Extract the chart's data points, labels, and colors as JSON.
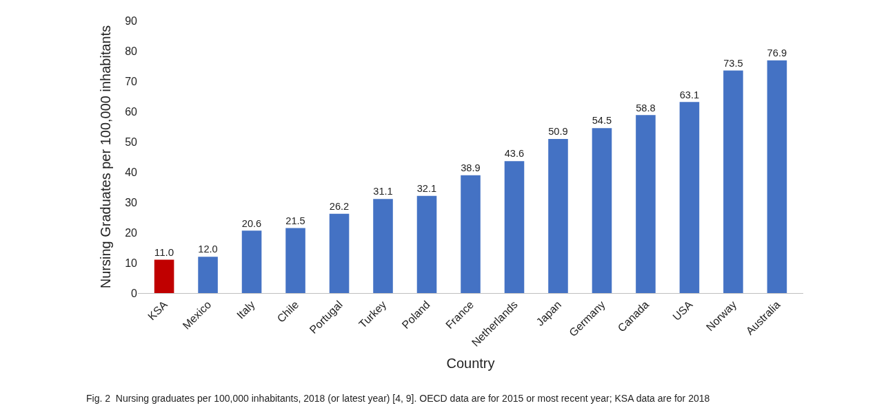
{
  "chart_data": {
    "type": "bar",
    "xlabel": "Country",
    "ylabel": "Nursing Graduates per 100,000 inhabitants",
    "categories": [
      "KSA",
      "Mexico",
      "Italy",
      "Chile",
      "Portugal",
      "Turkey",
      "Poland",
      "France",
      "Netherlands",
      "Japan",
      "Germany",
      "Canada",
      "USA",
      "Norway",
      "Australia"
    ],
    "values": [
      11.0,
      12.0,
      20.6,
      21.5,
      26.2,
      31.1,
      32.1,
      38.9,
      43.6,
      50.9,
      54.5,
      58.8,
      63.1,
      73.5,
      76.9
    ],
    "colors": [
      "#c00000",
      "#4472c4",
      "#4472c4",
      "#4472c4",
      "#4472c4",
      "#4472c4",
      "#4472c4",
      "#4472c4",
      "#4472c4",
      "#4472c4",
      "#4472c4",
      "#4472c4",
      "#4472c4",
      "#4472c4",
      "#4472c4"
    ],
    "value_labels": [
      "11.0",
      "12.0",
      "20.6",
      "21.5",
      "26.2",
      "31.1",
      "32.1",
      "38.9",
      "43.6",
      "50.9",
      "54.5",
      "58.8",
      "63.1",
      "73.5",
      "76.9"
    ],
    "ylim": [
      0,
      90
    ],
    "yticks": [
      0,
      10,
      20,
      30,
      40,
      50,
      60,
      70,
      80,
      90
    ],
    "annotations": [
      "Fig. 2  Nursing graduates per 100,000 inhabitants, 2018 (or latest year) [4, 9]. OECD data are for 2015 or most recent year; KSA data are for 2018"
    ]
  }
}
